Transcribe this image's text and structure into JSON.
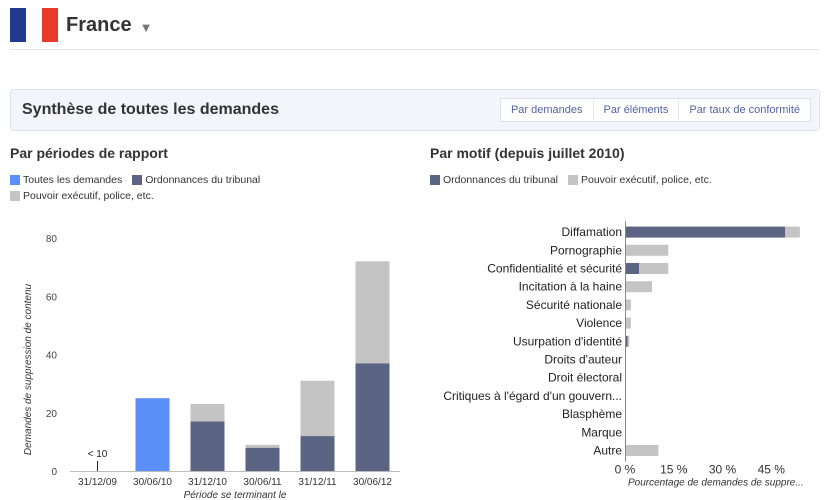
{
  "header": {
    "country": "France",
    "flag_colors": [
      "#1f3a8f",
      "#ffffff",
      "#e8392b"
    ]
  },
  "summary": {
    "title": "Synthèse de toutes les demandes",
    "tabs": [
      {
        "label": "Par demandes",
        "active": true
      },
      {
        "label": "Par éléments",
        "active": false
      },
      {
        "label": "Par taux de conformité",
        "active": false
      }
    ]
  },
  "colors": {
    "all_requests": "#5b8ff9",
    "court_orders": "#5b6482",
    "executive_police": "#c4c4c4"
  },
  "left_chart": {
    "title": "Par périodes de rapport",
    "legend": [
      "Toutes les demandes",
      "Ordonnances du tribunal",
      "Pouvoir exécutif, police, etc."
    ],
    "small_label": "< 10"
  },
  "right_chart": {
    "title": "Par motif (depuis juillet 2010)",
    "legend": [
      "Ordonnances du tribunal",
      "Pouvoir exécutif, police, etc."
    ]
  },
  "chart_data": [
    {
      "type": "bar",
      "stacked": true,
      "categories": [
        "31/12/09",
        "30/06/10",
        "31/12/10",
        "30/06/11",
        "31/12/11",
        "30/06/12"
      ],
      "series": [
        {
          "name": "Toutes les demandes",
          "values": [
            0,
            25,
            0,
            0,
            0,
            0
          ]
        },
        {
          "name": "Ordonnances du tribunal",
          "values": [
            0,
            0,
            17,
            8,
            12,
            37
          ]
        },
        {
          "name": "Pouvoir exécutif, police, etc.",
          "values": [
            0,
            0,
            6,
            1,
            19,
            35
          ]
        }
      ],
      "xlabel": "Période se terminant le",
      "ylabel": "Demandes de suppression de contenu",
      "ylim": [
        0,
        80
      ],
      "yticks": [
        0,
        20,
        40,
        60,
        80
      ]
    },
    {
      "type": "bar",
      "orientation": "horizontal",
      "stacked": true,
      "categories": [
        "Diffamation",
        "Pornographie",
        "Confidentialité et sécurité",
        "Incitation à la haine",
        "Sécurité nationale",
        "Violence",
        "Usurpation d'identité",
        "Droits d'auteur",
        "Droit électoral",
        "Critiques à l'égard d'un gouvern...",
        "Blasphème",
        "Marque",
        "Autre"
      ],
      "series": [
        {
          "name": "Ordonnances du tribunal",
          "values": [
            49,
            0,
            4,
            0,
            0,
            0,
            0.5,
            0,
            0,
            0,
            0,
            0,
            0
          ]
        },
        {
          "name": "Pouvoir exécutif, police, etc.",
          "values": [
            4.5,
            13,
            9,
            8,
            1.5,
            1.5,
            0.5,
            0,
            0,
            0,
            0,
            0,
            10
          ]
        }
      ],
      "xlabel": "Pourcentage de demandes de suppre...",
      "xlim": [
        0,
        60
      ],
      "xticks": [
        "0 %",
        "15 %",
        "30 %",
        "45 %"
      ]
    }
  ]
}
